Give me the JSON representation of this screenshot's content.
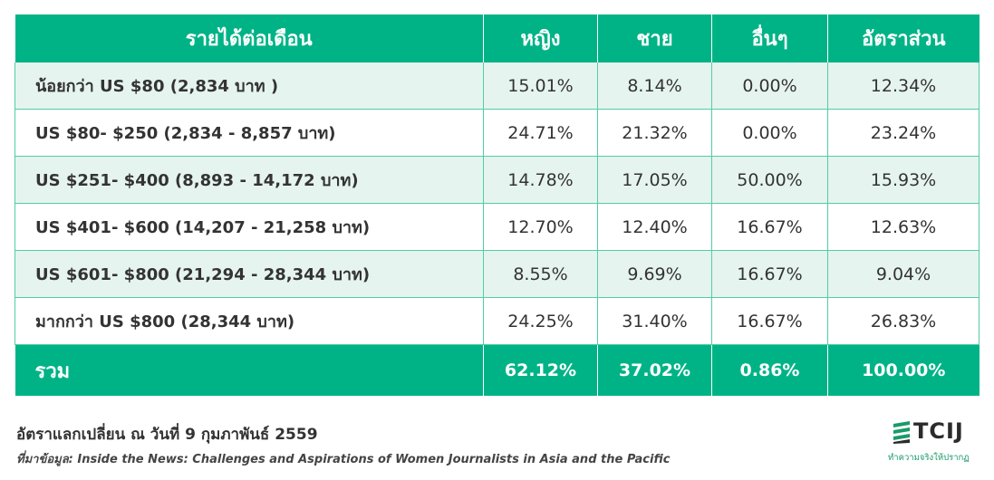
{
  "table": {
    "headers": [
      "รายได้ต่อเดือน",
      "หญิง",
      "ชาย",
      "อื่นๆ",
      "อัตราส่วน"
    ],
    "rows": [
      [
        "น้อยกว่า US $80 (2,834 บาท )",
        "15.01%",
        "8.14%",
        "0.00%",
        "12.34%"
      ],
      [
        "US $80- $250 (2,834 - 8,857 บาท)",
        "24.71%",
        "21.32%",
        "0.00%",
        "23.24%"
      ],
      [
        "US $251- $400 (8,893 - 14,172 บาท)",
        "14.78%",
        "17.05%",
        "50.00%",
        "15.93%"
      ],
      [
        "US $401- $600 (14,207 - 21,258 บาท)",
        "12.70%",
        "12.40%",
        "16.67%",
        "12.63%"
      ],
      [
        "US $601- $800 (21,294 - 28,344 บาท)",
        "8.55%",
        "9.69%",
        "16.67%",
        "9.04%"
      ],
      [
        "มากกว่า US $800 (28,344 บาท)",
        "24.25%",
        "31.40%",
        "16.67%",
        "26.83%"
      ]
    ],
    "total": [
      "รวม",
      "62.12%",
      "37.02%",
      "0.86%",
      "100.00%"
    ]
  },
  "footer": {
    "exchange_rate_note": "อัตราแลกเปลี่ยน ณ วันที่ 9 กุมภาพันธ์ 2559",
    "source_note": "ที่มาข้อมูล: Inside the News: Challenges and Aspirations of Women Journalists in Asia and the Pacific"
  },
  "logo": {
    "name": "TCIJ",
    "tagline": "ทำความจริงให้ปรากฏ",
    "icon": "tcij-logo-icon"
  },
  "colors": {
    "header_green": "#00b386",
    "alt_row_bg": "#e6f4ef",
    "border_green": "#4fcfa3"
  }
}
